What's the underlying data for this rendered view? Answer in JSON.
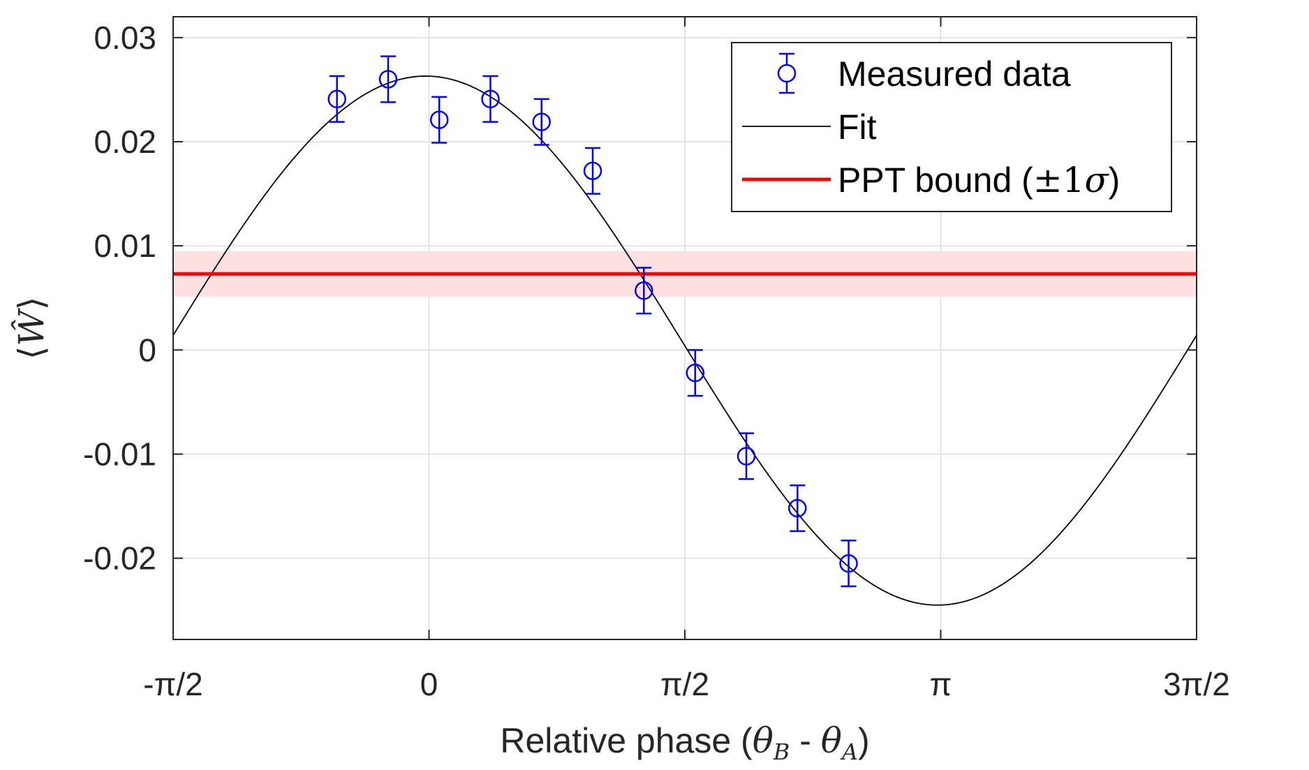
{
  "chart_data": {
    "type": "scatter",
    "title": "",
    "xlabel": "Relative phase (θB - θA)",
    "ylabel": "⟨Ŵ⟩",
    "xlabel_parts": {
      "prefix": "Relative phase (",
      "theta1": "θ",
      "sub1": "B",
      "middle": " - ",
      "theta2": "θ",
      "sub2": "A",
      "suffix": ")"
    },
    "ylabel_parts": {
      "langle": "⟨",
      "symbol": "Ŵ",
      "rangle": "⟩"
    },
    "xlim": [
      -1.5708,
      4.7124
    ],
    "ylim": [
      -0.0278,
      0.032
    ],
    "x_ticks": [
      {
        "value": -1.5708,
        "label": "-π/2"
      },
      {
        "value": 0,
        "label": "0"
      },
      {
        "value": 1.5708,
        "label": "π/2"
      },
      {
        "value": 3.1416,
        "label": "π"
      },
      {
        "value": 4.7124,
        "label": "3π/2"
      }
    ],
    "y_ticks": [
      {
        "value": 0.03,
        "label": "0.03"
      },
      {
        "value": 0.02,
        "label": "0.02"
      },
      {
        "value": 0.01,
        "label": "0.01"
      },
      {
        "value": 0,
        "label": "0"
      },
      {
        "value": -0.01,
        "label": "-0.01"
      },
      {
        "value": -0.02,
        "label": "-0.02"
      }
    ],
    "grid": true,
    "legend_position": "top-right",
    "series": [
      {
        "name": "Measured data",
        "kind": "errorbar",
        "color": "#0000ff",
        "x": [
          -0.565,
          -0.251,
          0.063,
          0.377,
          0.691,
          1.005,
          1.319,
          1.634,
          1.948,
          2.262,
          2.576
        ],
        "y": [
          0.0241,
          0.026,
          0.0221,
          0.0241,
          0.0219,
          0.0172,
          0.0057,
          -0.0022,
          -0.0102,
          -0.0152,
          -0.0205
        ],
        "err": [
          0.0022,
          0.0022,
          0.0022,
          0.0022,
          0.0022,
          0.0022,
          0.0022,
          0.0022,
          0.0022,
          0.0022,
          0.0022
        ]
      },
      {
        "name": "Fit",
        "kind": "line",
        "color": "#000000",
        "model": "offset + amplitude * cos(x - phase)",
        "offset": 0.0009,
        "amplitude": 0.0254,
        "phase": -0.02
      },
      {
        "name": "PPT bound (±1σ)",
        "kind": "hline",
        "color": "#ff0000",
        "band_color": "#ffe1e1",
        "y": 0.0073,
        "sigma": 0.0022
      }
    ],
    "legend_entries": [
      {
        "label": "Measured data"
      },
      {
        "label": "Fit"
      },
      {
        "label": "PPT bound (±1σ)",
        "prefix": "PPT bound (",
        "pm": "±",
        "one": "1",
        "sigma": "σ",
        "suffix": ")"
      }
    ]
  }
}
